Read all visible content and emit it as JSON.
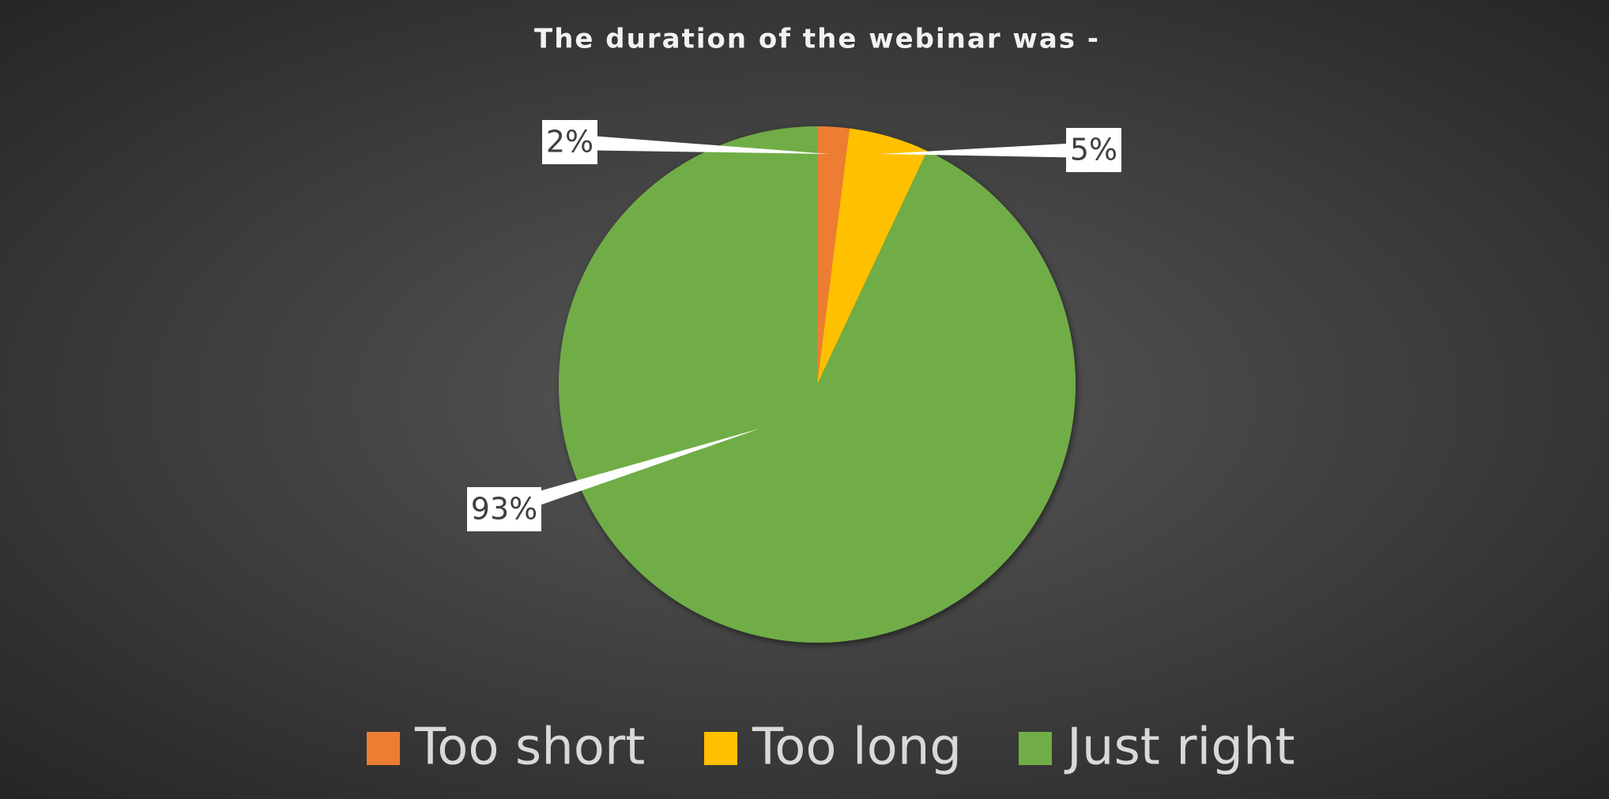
{
  "chart_data": {
    "type": "pie",
    "title": "The duration of the webinar was -",
    "categories": [
      "Too short",
      "Too long",
      "Just right"
    ],
    "values": [
      2,
      5,
      93
    ],
    "value_labels": [
      "2%",
      "5%",
      "93%"
    ],
    "colors": [
      "#ed7d31",
      "#ffc000",
      "#70ad47"
    ],
    "legend": "bottom"
  }
}
